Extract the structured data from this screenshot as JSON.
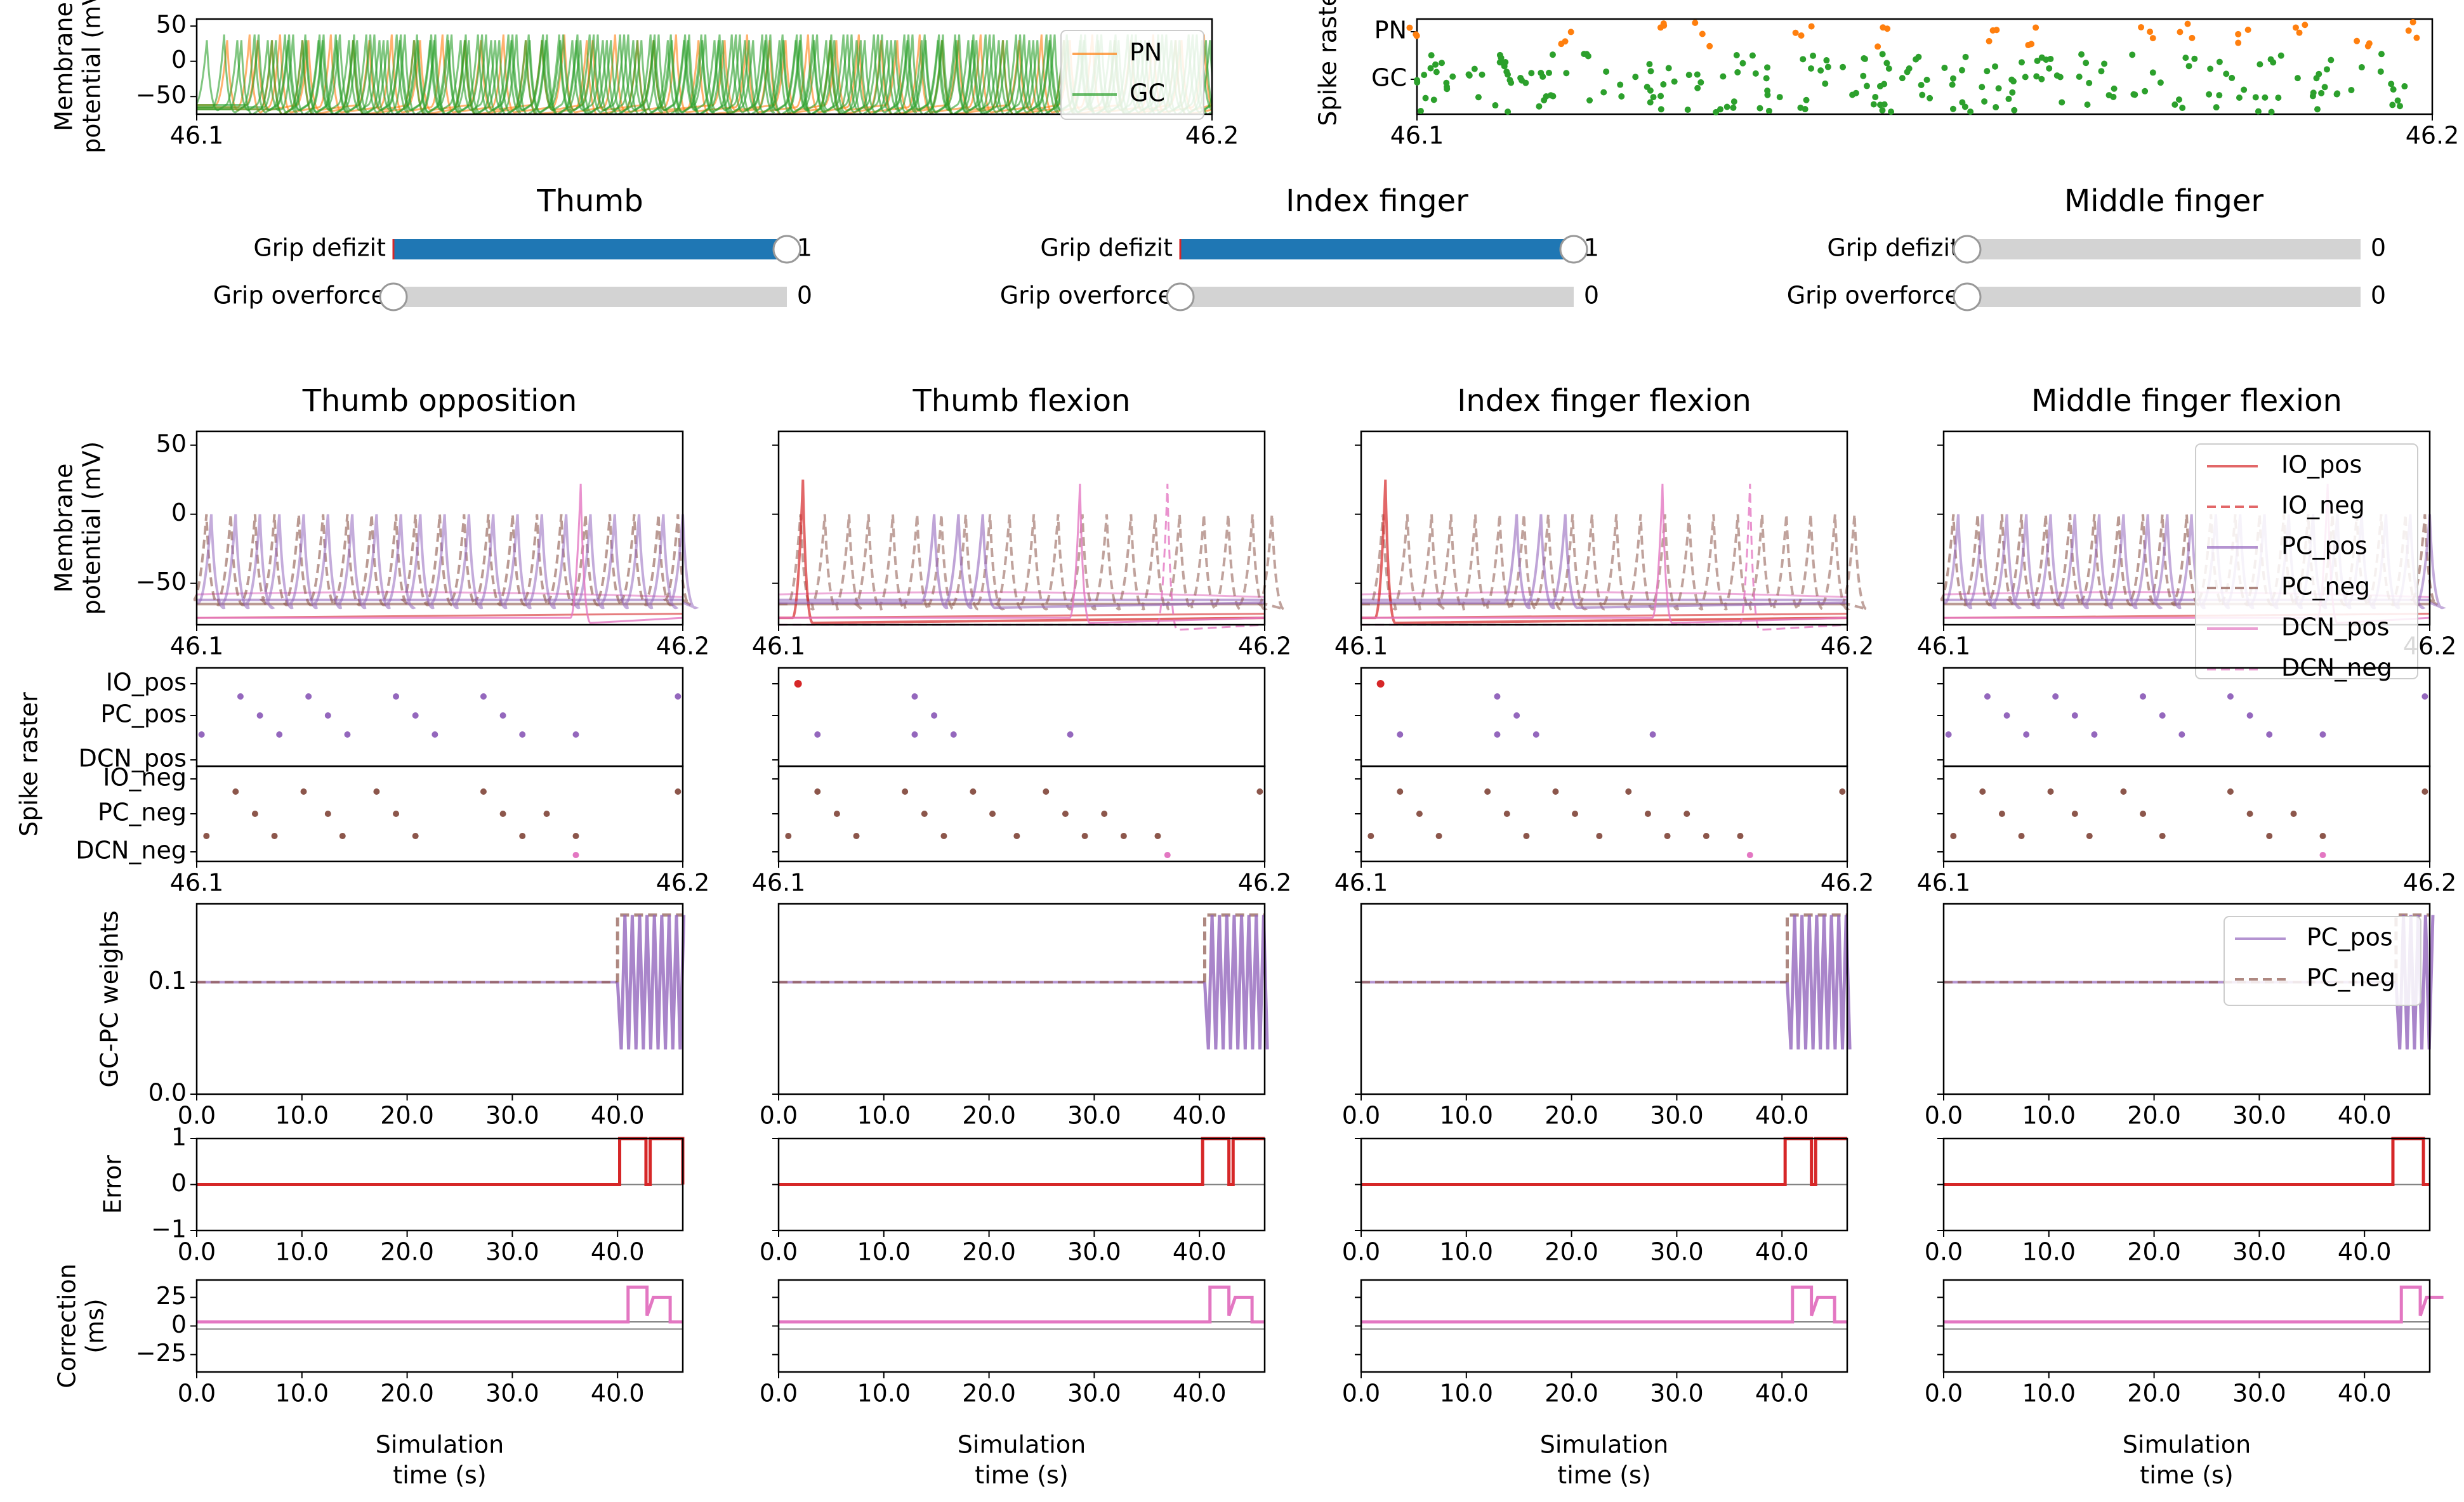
{
  "sliders": [
    {
      "title": "Thumb",
      "rows": [
        {
          "label": "Grip defizit",
          "value": 1,
          "display": "1"
        },
        {
          "label": "Grip overforce",
          "value": 0,
          "display": "0"
        }
      ]
    },
    {
      "title": "Index finger",
      "rows": [
        {
          "label": "Grip defizit",
          "value": 1,
          "display": "1"
        },
        {
          "label": "Grip overforce",
          "value": 0,
          "display": "0"
        }
      ]
    },
    {
      "title": "Middle finger",
      "rows": [
        {
          "label": "Grip defizit",
          "value": 0,
          "display": "0"
        },
        {
          "label": "Grip overforce",
          "value": 0,
          "display": "0"
        }
      ]
    }
  ],
  "colors": {
    "slider_fill": "#1f77b4",
    "slider_track": "#d3d3d3",
    "PN": "#ff7f0e",
    "GC": "#2ca02c",
    "pos_IO": "#d62728",
    "pos_PC": "#9467bd",
    "pos_DCN": "#e377c2",
    "neg": "#8c564b",
    "error": "#d62728",
    "correction": "#e377c2",
    "ref": "#808080"
  },
  "chart_data": [
    {
      "id": "top_membrane",
      "type": "line",
      "ylabel": "Membrane\npotential (mV)",
      "yticks": [
        "50",
        "0",
        "−50"
      ],
      "xticks": [
        "46.1",
        "46.2"
      ],
      "xlim": [
        46.1,
        46.2
      ],
      "ylim": [
        -75,
        60
      ],
      "legend": [
        "PN",
        "GC"
      ],
      "series": [
        {
          "name": "PN",
          "color": "#ff7f0e",
          "spike_times": [
            46.103,
            46.106,
            46.111,
            46.117,
            46.122,
            46.128,
            46.134,
            46.139,
            46.145,
            46.152,
            46.158,
            46.163,
            46.169,
            46.175,
            46.181,
            46.186,
            46.192,
            46.197
          ]
        },
        {
          "name": "GC",
          "color": "#2ca02c",
          "spike_times": [
            46.101,
            46.104,
            46.107,
            46.109,
            46.112,
            46.115,
            46.118,
            46.12,
            46.123,
            46.126,
            46.129,
            46.131,
            46.134,
            46.137,
            46.14,
            46.143,
            46.145,
            46.148,
            46.151,
            46.154,
            46.156,
            46.159,
            46.162,
            46.165,
            46.168,
            46.17,
            46.173,
            46.176,
            46.179,
            46.182,
            46.184,
            46.187,
            46.19,
            46.193,
            46.196,
            46.199
          ]
        }
      ]
    },
    {
      "id": "top_raster",
      "type": "scatter",
      "ylabel": "Spike raster",
      "yticks": [
        "PN",
        "GC"
      ],
      "xticks": [
        "46.1",
        "46.2"
      ],
      "xlim": [
        46.1,
        46.2
      ],
      "series": [
        {
          "name": "PN",
          "color": "#ff7f0e",
          "x": [
            46.1,
            46.115,
            46.124,
            46.128,
            46.138,
            46.146,
            46.157,
            46.161,
            46.172,
            46.176,
            46.181,
            46.187,
            46.193,
            46.198
          ],
          "y_hint": "PN"
        },
        {
          "name": "GC",
          "color": "#2ca02c",
          "x": [
            46.104,
            46.108,
            46.113,
            46.119,
            46.125,
            46.131,
            46.136,
            46.142,
            46.149,
            46.155,
            46.16,
            46.166,
            46.171,
            46.177,
            46.183,
            46.188,
            46.194,
            46.199
          ],
          "y_hint": "GC"
        }
      ]
    },
    {
      "id": "panels",
      "type": "line",
      "titles": [
        "Thumb opposition",
        "Thumb flexion",
        "Index finger flexion",
        "Middle finger flexion"
      ],
      "membrane": {
        "ylabel": "Membrane\npotential (mV)",
        "yticks": [
          "50",
          "0",
          "−50"
        ],
        "xticks": [
          "46.1",
          "46.2"
        ],
        "ylim": [
          -80,
          60
        ],
        "legend": [
          "IO_pos",
          "IO_neg",
          "PC_pos",
          "PC_neg",
          "DCN_pos",
          "DCN_neg"
        ],
        "pc_spike_times": [
          46.102,
          46.107,
          46.112,
          46.116,
          46.121,
          46.126,
          46.131,
          46.136,
          46.141,
          46.145,
          46.15,
          46.155,
          46.16,
          46.165,
          46.17,
          46.175,
          46.18,
          46.185,
          46.19,
          46.195,
          46.199
        ]
      },
      "raster": {
        "ylabel": "Spike raster",
        "yticks_top": [
          "IO_pos",
          "PC_pos",
          "DCN_pos"
        ],
        "yticks_bottom": [
          "IO_neg",
          "PC_neg",
          "DCN_neg"
        ],
        "xticks": [
          "46.1",
          "46.2"
        ]
      },
      "weights": {
        "ylabel": "GC-PC weights",
        "yticks": [
          "0.1",
          "0.0"
        ],
        "xticks": [
          "0.0",
          "10.0",
          "20.0",
          "30.0",
          "40.0"
        ],
        "xlim": [
          0,
          46.2
        ],
        "ylim": [
          0,
          0.17
        ],
        "baseline": 0.1,
        "high": 0.16,
        "low": 0.04,
        "legend": [
          "PC_pos",
          "PC_neg"
        ],
        "onsets": [
          40,
          40.5,
          40.5,
          43
        ]
      },
      "error": {
        "ylabel": "Error",
        "yticks": [
          "1",
          "0",
          "−1"
        ],
        "xticks": [
          "0.0",
          "10.0",
          "20.0",
          "30.0",
          "40.0"
        ],
        "xlim": [
          0,
          46.2
        ],
        "ylim": [
          -1,
          1
        ],
        "onsets": [
          40.2,
          40.3,
          40.3,
          42.7
        ]
      },
      "correction": {
        "ylabel": "Correction\n(ms)",
        "yticks": [
          "25",
          "0",
          "−25"
        ],
        "xticks": [
          "0.0",
          "10.0",
          "20.0",
          "30.0",
          "40.0"
        ],
        "xlim": [
          0,
          46.2
        ],
        "ylim": [
          -45,
          45
        ],
        "onsets": [
          41,
          41,
          41,
          43.5
        ]
      },
      "xlabel": "Simulation\ntime (s)"
    }
  ]
}
